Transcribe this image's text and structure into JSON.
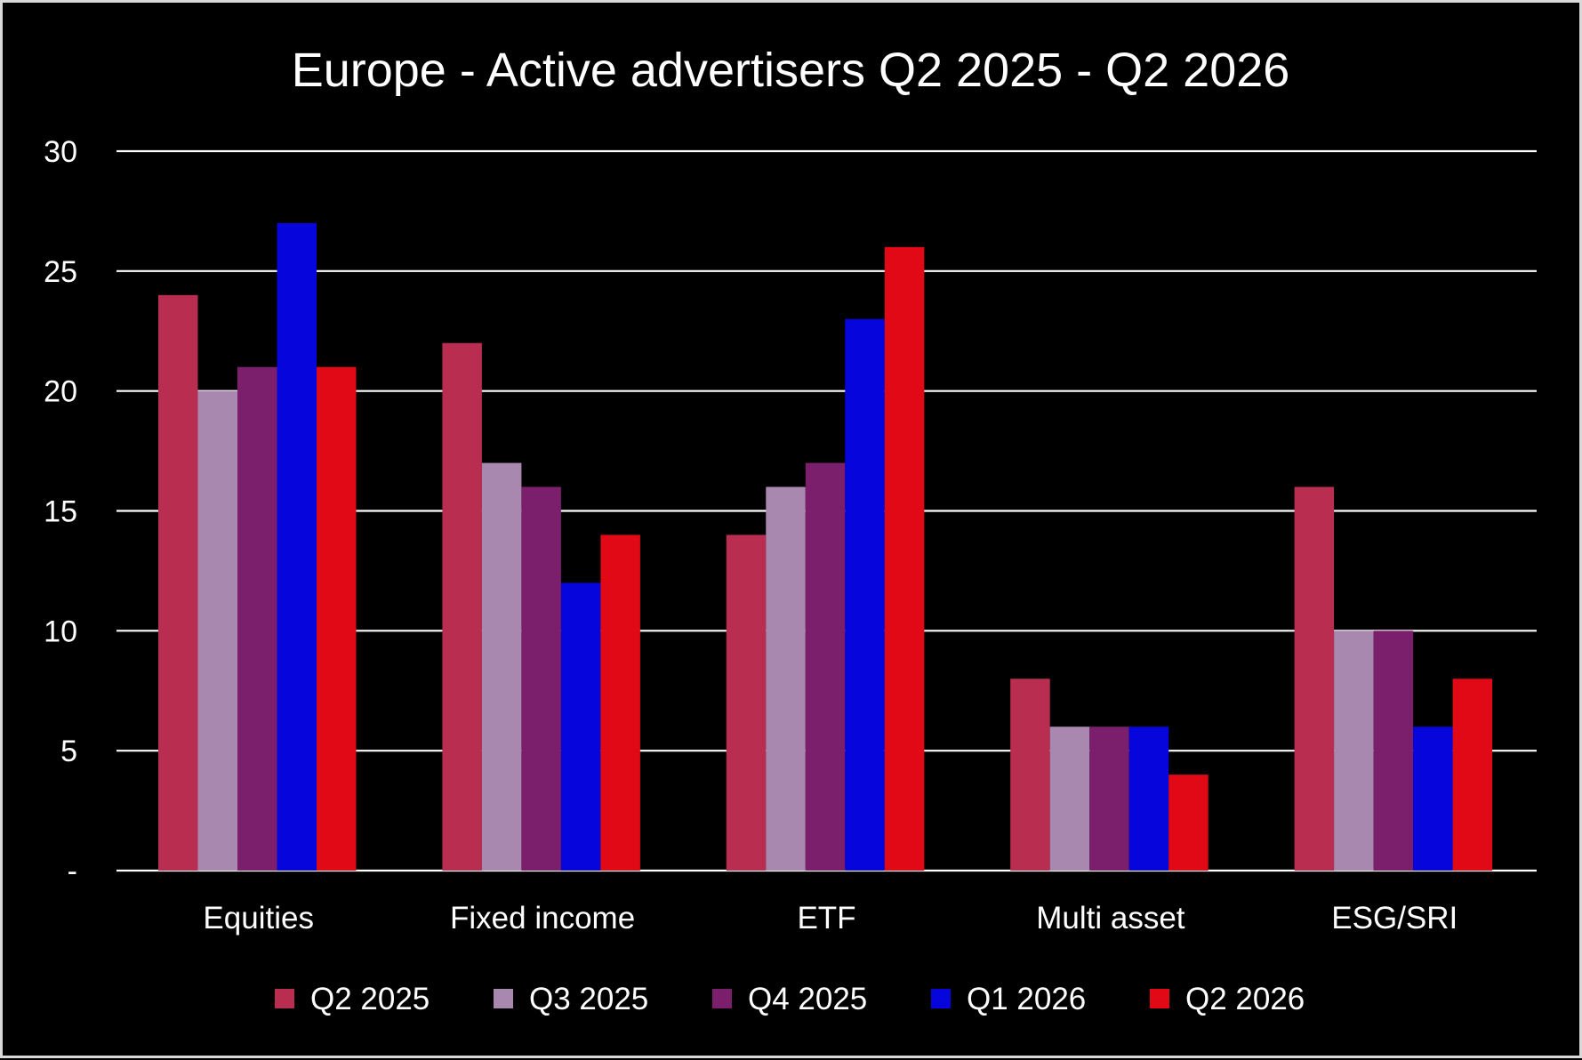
{
  "chart_data": {
    "type": "bar",
    "title": "Europe - Active advertisers Q2 2025 - Q2 2026",
    "xlabel": "",
    "ylabel": "",
    "categories": [
      "Equities",
      "Fixed income",
      "ETF",
      "Multi asset",
      "ESG/SRI"
    ],
    "series": [
      {
        "name": "Q2 2025",
        "color": "#b92d50",
        "values": [
          24,
          22,
          14,
          8,
          16
        ]
      },
      {
        "name": "Q3 2025",
        "color": "#a988b0",
        "values": [
          20,
          17,
          16,
          6,
          10
        ]
      },
      {
        "name": "Q4 2025",
        "color": "#7b1f6c",
        "values": [
          21,
          16,
          17,
          6,
          10
        ]
      },
      {
        "name": "Q1 2026",
        "color": "#0505dc",
        "values": [
          27,
          12,
          23,
          6,
          6
        ]
      },
      {
        "name": "Q2 2026",
        "color": "#e00915",
        "values": [
          21,
          14,
          26,
          4,
          8
        ]
      }
    ],
    "ylim": [
      0,
      30
    ],
    "yticks": [
      0,
      5,
      10,
      15,
      20,
      25,
      30
    ],
    "ytick_labels": [
      "-",
      "5",
      "10",
      "15",
      "20",
      "25",
      "30"
    ],
    "grid": true,
    "legend_position": "bottom",
    "background": "#000000",
    "text_color": "#ffffff",
    "grid_color": "#ffffff"
  }
}
